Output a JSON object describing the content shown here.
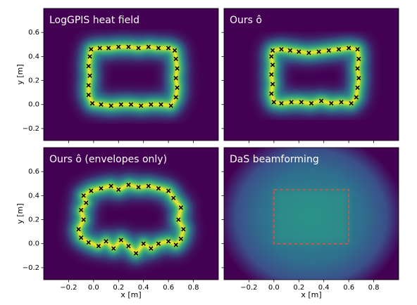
{
  "chart_data": {
    "type": "panel-grid",
    "xlabel": "x [m]",
    "ylabel": "y [m]",
    "xlim": [
      -0.4,
      1.0
    ],
    "ylim": [
      -0.3,
      0.8
    ],
    "xticks": [
      {
        "value": -0.2,
        "label": "−0.2"
      },
      {
        "value": 0,
        "label": "0.0"
      },
      0.2,
      0.4,
      0.6,
      0.8
    ],
    "yticks": [
      {
        "value": -0.2,
        "label": "−0.2"
      },
      {
        "value": 0,
        "label": "0.0"
      },
      0.2,
      0.4,
      0.6
    ],
    "panels": [
      {
        "type": "scatter",
        "title": "LogGPIS heat field",
        "marker_color": "#000000",
        "x": [
          -0.02,
          0.05,
          0.12,
          0.2,
          0.28,
          0.36,
          0.44,
          0.52,
          0.6,
          0.65,
          0.66,
          0.67,
          0.66,
          0.67,
          0.66,
          0.62,
          0.54,
          0.46,
          0.38,
          0.3,
          0.22,
          0.14,
          0.06,
          -0.01,
          -0.04,
          -0.04,
          -0.03,
          -0.04,
          -0.03
        ],
        "y": [
          0.46,
          0.47,
          0.47,
          0.48,
          0.48,
          0.47,
          0.48,
          0.47,
          0.47,
          0.45,
          0.38,
          0.3,
          0.22,
          0.14,
          0.06,
          -0.01,
          0.0,
          0.0,
          -0.01,
          0.0,
          0.0,
          -0.01,
          0.0,
          0.01,
          0.08,
          0.16,
          0.24,
          0.32,
          0.4
        ]
      },
      {
        "type": "scatter",
        "title": "Ours ô",
        "marker_color": "#000000",
        "x": [
          -0.01,
          0.06,
          0.13,
          0.2,
          0.28,
          0.36,
          0.44,
          0.52,
          0.6,
          0.67,
          0.68,
          0.67,
          0.68,
          0.67,
          0.66,
          0.62,
          0.54,
          0.46,
          0.38,
          0.3,
          0.22,
          0.14,
          0.06,
          0.0,
          -0.02,
          -0.01,
          -0.02,
          -0.01,
          -0.02
        ],
        "y": [
          0.45,
          0.46,
          0.45,
          0.44,
          0.43,
          0.44,
          0.45,
          0.46,
          0.47,
          0.46,
          0.38,
          0.3,
          0.22,
          0.14,
          0.06,
          0.01,
          0.02,
          0.01,
          0.03,
          0.01,
          0.02,
          0.02,
          0.01,
          0.02,
          0.09,
          0.17,
          0.25,
          0.33,
          0.4
        ]
      },
      {
        "type": "scatter",
        "title": "Ours ô (envelopes only)",
        "marker_color": "#000000",
        "x": [
          -0.08,
          -0.02,
          0.06,
          0.14,
          0.2,
          0.28,
          0.36,
          0.44,
          0.52,
          0.6,
          0.64,
          0.7,
          0.68,
          0.72,
          0.7,
          0.66,
          0.6,
          0.52,
          0.46,
          0.4,
          0.34,
          0.28,
          0.22,
          0.16,
          0.1,
          0.04,
          -0.04,
          -0.1,
          -0.12,
          -0.08,
          -0.1,
          -0.06
        ],
        "y": [
          0.4,
          0.44,
          0.46,
          0.48,
          0.45,
          0.49,
          0.47,
          0.48,
          0.46,
          0.44,
          0.38,
          0.3,
          0.2,
          0.12,
          0.04,
          -0.01,
          0.02,
          0.0,
          -0.04,
          0.0,
          -0.08,
          -0.02,
          0.03,
          -0.04,
          0.02,
          -0.02,
          0.01,
          0.05,
          0.12,
          0.2,
          0.28,
          0.34
        ]
      },
      {
        "type": "beamforming",
        "title": "DaS beamforming",
        "box_x": [
          0,
          0.6
        ],
        "box_y": [
          0,
          0.45
        ],
        "box_color": "#e0533a"
      }
    ]
  }
}
